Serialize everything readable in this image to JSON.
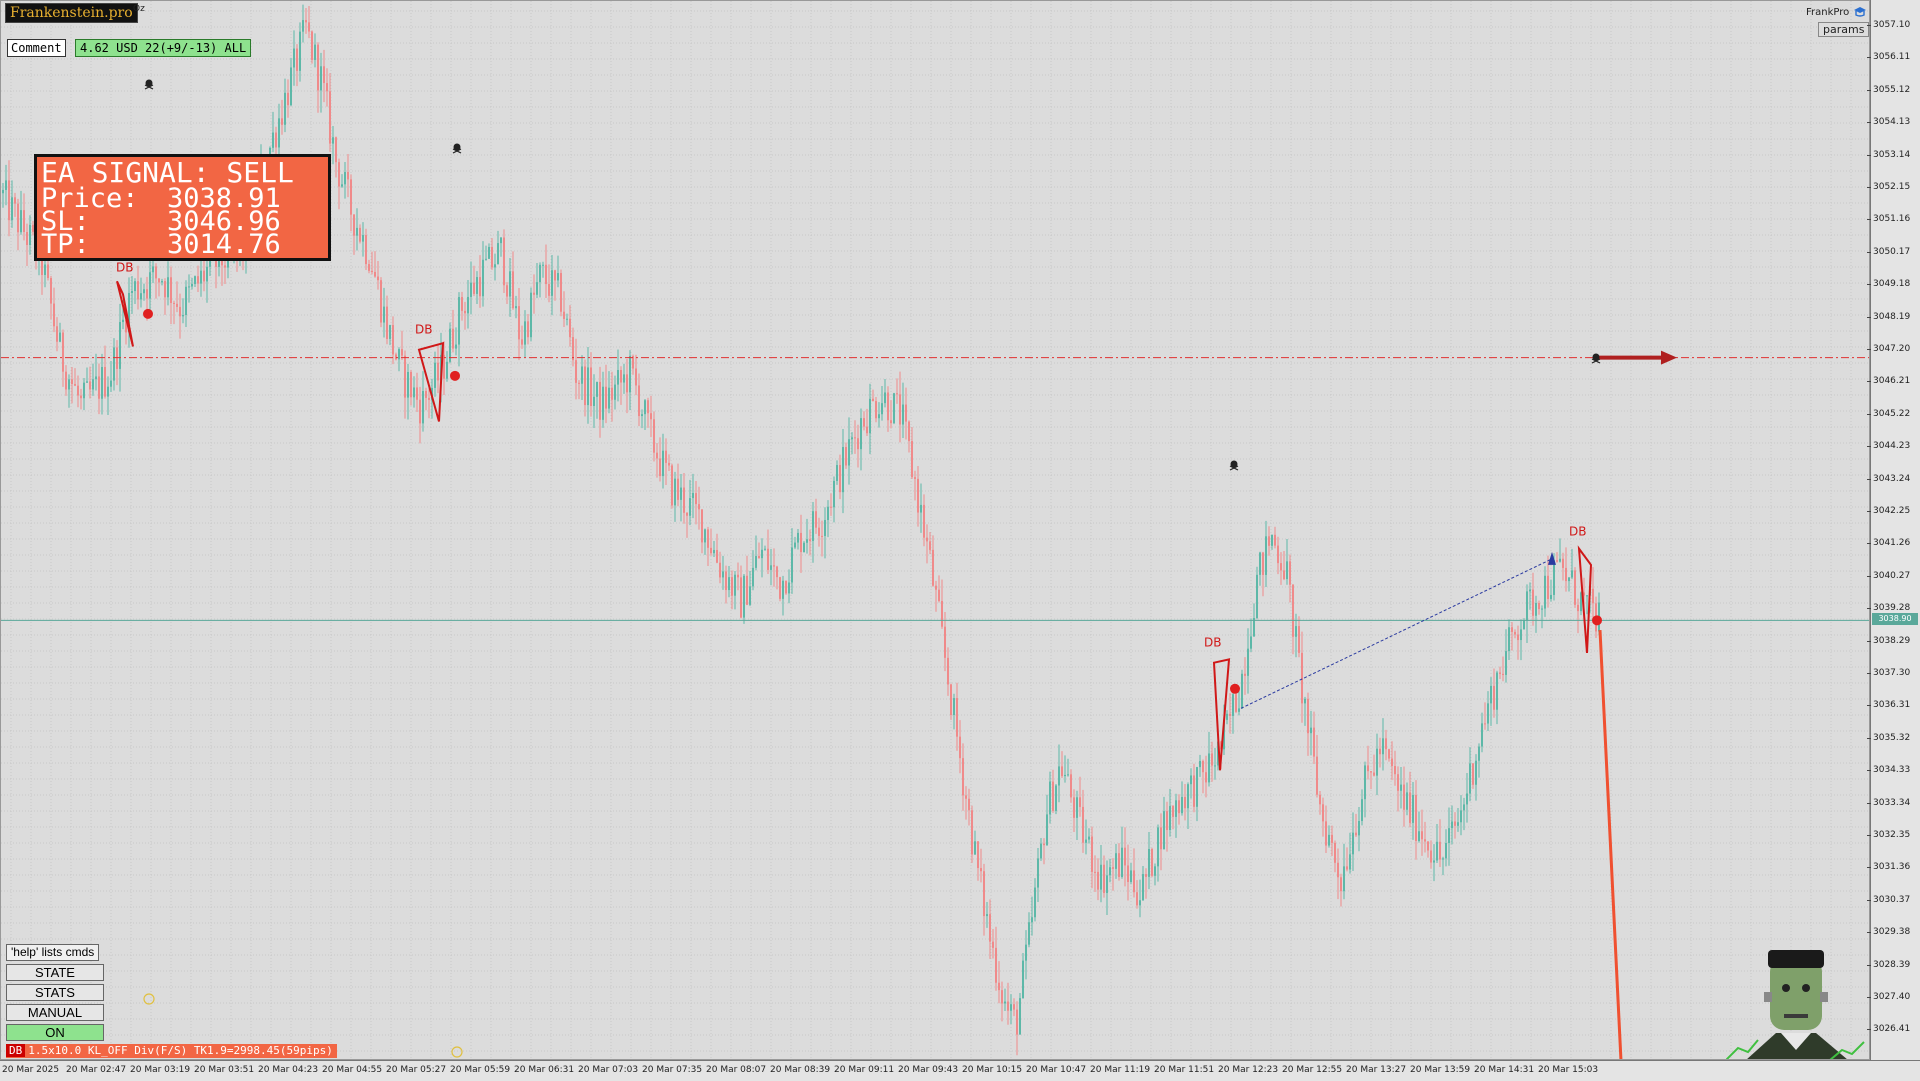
{
  "brand": {
    "name": "Frankenstein.pro",
    "suffix": "Oz"
  },
  "comment": {
    "label": "Comment",
    "stats": "4.62 USD 22(+9/-13) ALL"
  },
  "signal": {
    "title": "EA SIGNAL: SELL",
    "rows": [
      {
        "label": "Price:",
        "value": "3038.91"
      },
      {
        "label": "SL:",
        "value": "3046.96"
      },
      {
        "label": "TP:",
        "value": "3014.76"
      }
    ]
  },
  "topright": {
    "label": "FrankPro",
    "params": "params"
  },
  "panel": {
    "help": "'help' lists cmds",
    "buttons": [
      "STATE",
      "STATS",
      "MANUAL",
      "ON"
    ]
  },
  "status_bar": {
    "tag": "DB",
    "text": "1.5x10.0 KL_OFF Div(F/S) TK1.9=2998.45(59pips)"
  },
  "price_axis": {
    "ticks": [
      "3057.10",
      "3056.11",
      "3055.12",
      "3054.13",
      "3053.14",
      "3052.15",
      "3051.16",
      "3050.17",
      "3049.18",
      "3048.19",
      "3047.20",
      "3046.21",
      "3045.22",
      "3044.23",
      "3043.24",
      "3042.25",
      "3041.26",
      "3040.27",
      "3039.28",
      "3038.29",
      "3037.30",
      "3036.31",
      "3035.32",
      "3034.33",
      "3033.34",
      "3032.35",
      "3031.36",
      "3030.37",
      "3029.38",
      "3028.39",
      "3027.40",
      "3026.41"
    ],
    "current_price": "3038.90"
  },
  "time_axis": {
    "ticks": [
      "20 Mar 2025",
      "20 Mar 02:47",
      "20 Mar 03:19",
      "20 Mar 03:51",
      "20 Mar 04:23",
      "20 Mar 04:55",
      "20 Mar 05:27",
      "20 Mar 05:59",
      "20 Mar 06:31",
      "20 Mar 07:03",
      "20 Mar 07:35",
      "20 Mar 08:07",
      "20 Mar 08:39",
      "20 Mar 09:11",
      "20 Mar 09:43",
      "20 Mar 10:15",
      "20 Mar 10:47",
      "20 Mar 11:19",
      "20 Mar 11:51",
      "20 Mar 12:23",
      "20 Mar 12:55",
      "20 Mar 13:27",
      "20 Mar 13:59",
      "20 Mar 14:31",
      "20 Mar 15:03"
    ]
  },
  "markers": {
    "pattern_label": "DB"
  },
  "colors": {
    "bull": "#5db8a8",
    "bear": "#f08a8a",
    "signal_bg": "#f26644",
    "sl_line": "#e03030",
    "price_line": "#5aa89a",
    "accent_green": "#8ee28e"
  }
}
